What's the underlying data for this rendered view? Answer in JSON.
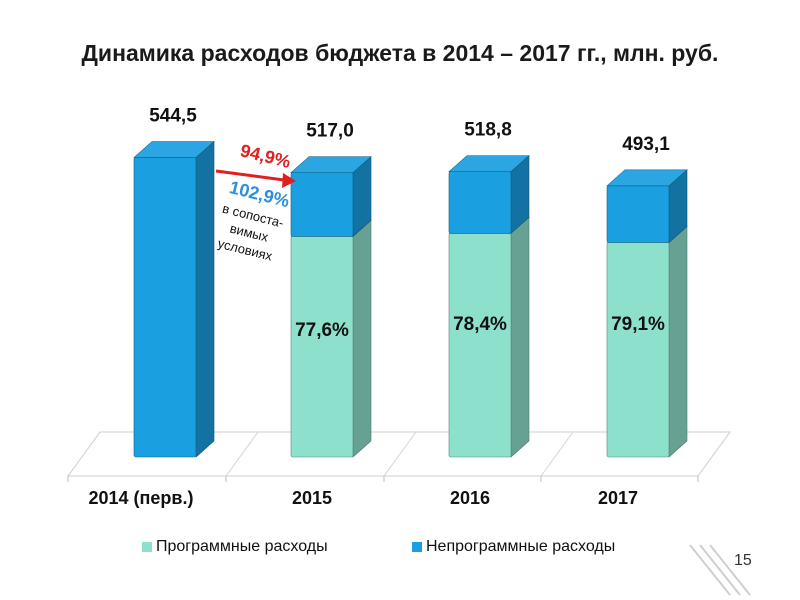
{
  "chart_data": {
    "type": "bar",
    "title": "Динамика расходов бюджета в 2014 – 2017 гг., млн. руб.",
    "categories": [
      "2014 (перв.)",
      "2015",
      "2016",
      "2017"
    ],
    "totals": [
      544.5,
      517.0,
      518.8,
      493.1
    ],
    "total_labels": [
      "544,5",
      "517,0",
      "518,8",
      "493,1"
    ],
    "series": [
      {
        "name": "Программные расходы",
        "values": [
          0,
          401.2,
          406.7,
          390.0
        ],
        "color": "#8de0cc"
      },
      {
        "name": "Непрограммные расходы",
        "values": [
          544.5,
          115.8,
          112.1,
          103.1
        ],
        "color": "#1a9fe0"
      }
    ],
    "share_labels": [
      "",
      "77,6%",
      "78,4%",
      "79,1%"
    ],
    "annotations": {
      "ratio_red": "94,9%",
      "ratio_blue": "102,9%",
      "ratio_blue_note": [
        "в сопоста-",
        "вимых",
        "условиях"
      ]
    },
    "stacked": true,
    "legend_position": "bottom"
  },
  "page_number": "15"
}
